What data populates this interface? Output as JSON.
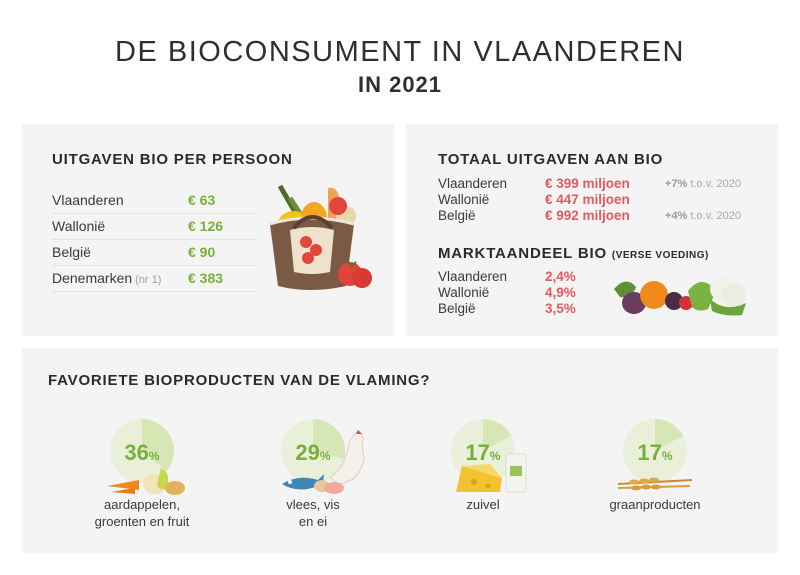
{
  "header": {
    "title": "DE BIOCONSUMENT IN VLAANDEREN",
    "year": "IN 2021"
  },
  "spending_per_person": {
    "heading": "UITGAVEN BIO PER PERSOON",
    "rows": [
      {
        "label": "Vlaanderen",
        "note": "",
        "value": "€ 63"
      },
      {
        "label": "Wallonië",
        "note": "",
        "value": "€ 126"
      },
      {
        "label": "België",
        "note": "",
        "value": "€ 90"
      },
      {
        "label": "Denemarken",
        "note": "(nr 1)",
        "value": "€ 383"
      }
    ]
  },
  "total_spending": {
    "heading": "TOTAAL UITGAVEN AAN BIO",
    "rows": [
      {
        "label": "Vlaanderen",
        "value": "€ 399 miljoen",
        "change_bold": "+7%",
        "change_rest": " t.o.v. 2020"
      },
      {
        "label": "Wallonië",
        "value": "€ 447 miljoen",
        "change_bold": "",
        "change_rest": ""
      },
      {
        "label": "België",
        "value": "€ 992 miljoen",
        "change_bold": "+4%",
        "change_rest": " t.o.v. 2020"
      }
    ]
  },
  "market_share": {
    "heading": "MARKTAANDEEL BIO",
    "heading_small": "(VERSE VOEDING)",
    "rows": [
      {
        "label": "Vlaanderen",
        "value": "2,4%"
      },
      {
        "label": "Wallonië",
        "value": "4,9%"
      },
      {
        "label": "België",
        "value": "3,5%"
      }
    ]
  },
  "favorites": {
    "heading": "FAVORIETE BIOPRODUCTEN VAN DE VLAMING?",
    "items": [
      {
        "percent": 36,
        "percent_text": "36",
        "unit": "%",
        "caption_line1": "aardappelen,",
        "caption_line2": "groenten en fruit"
      },
      {
        "percent": 29,
        "percent_text": "29",
        "unit": "%",
        "caption_line1": "vlees, vis",
        "caption_line2": "en ei"
      },
      {
        "percent": 17,
        "percent_text": "17",
        "unit": "%",
        "caption_line1": "zuivel",
        "caption_line2": ""
      },
      {
        "percent": 17,
        "percent_text": "17",
        "unit": "%",
        "caption_line1": "graanproducten",
        "caption_line2": ""
      }
    ]
  },
  "colors": {
    "green": "#76b03a",
    "red": "#e35b5b",
    "pie_light": "#e9efd9",
    "pie_fill": "#d6e6b5",
    "panel": "#f4f4f4"
  }
}
